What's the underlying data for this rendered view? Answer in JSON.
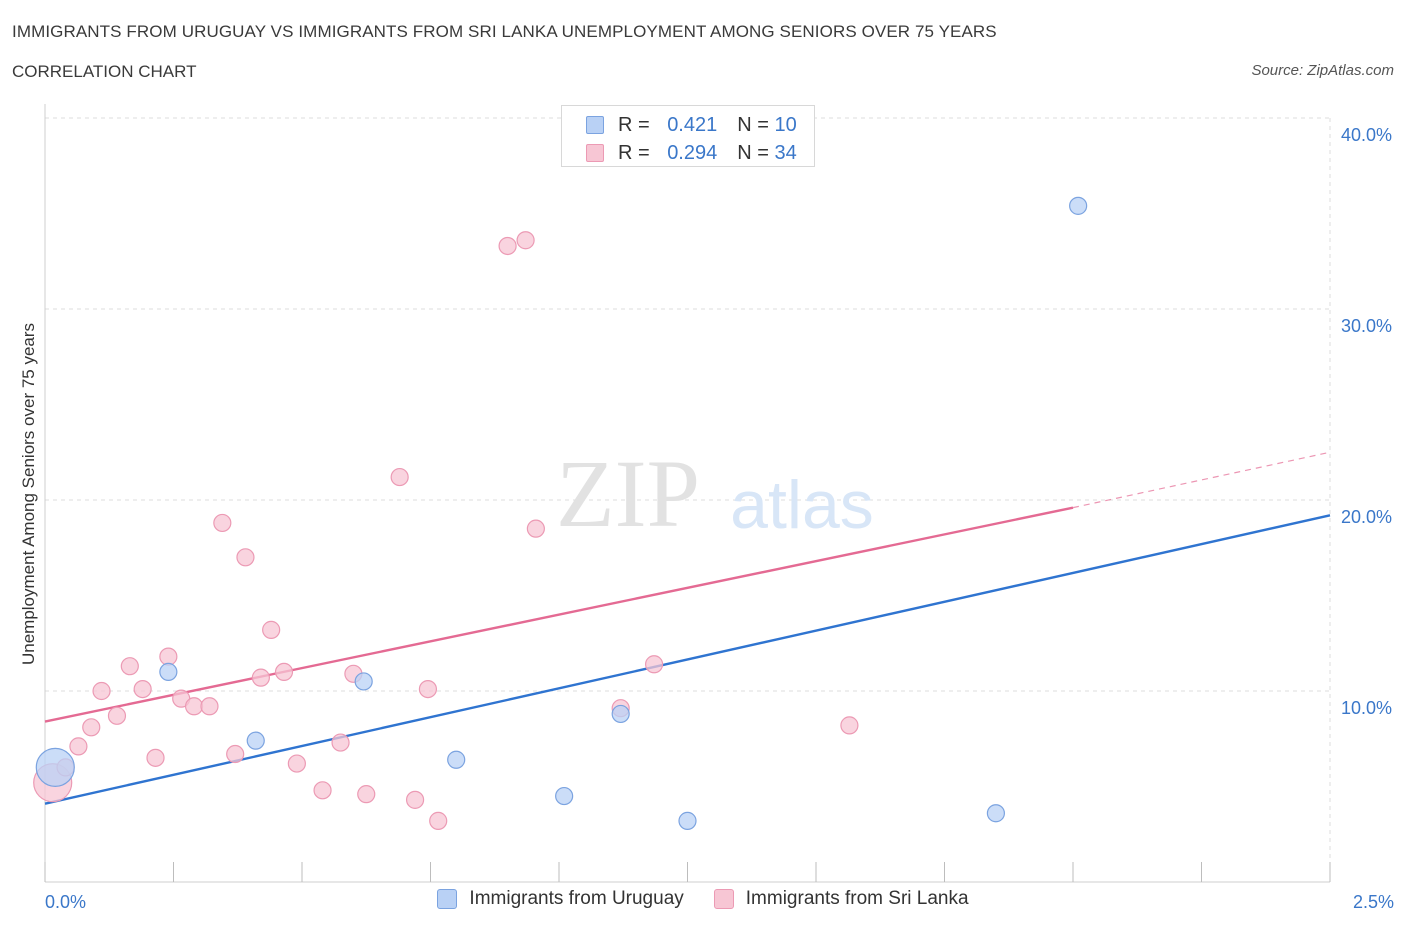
{
  "header": {
    "title": "IMMIGRANTS FROM URUGUAY VS IMMIGRANTS FROM SRI LANKA UNEMPLOYMENT AMONG SENIORS OVER 75 YEARS",
    "subtitle": "CORRELATION CHART",
    "source": "Source: ZipAtlas.com"
  },
  "watermark": {
    "zip": "ZIP",
    "atlas": "atlas"
  },
  "legend": {
    "r_label": "R =",
    "n_label": "N =",
    "rows": [
      {
        "r": "0.421",
        "n": "10"
      },
      {
        "r": "0.294",
        "n": "34"
      }
    ]
  },
  "colors": {
    "uruguay_fill": "#b9d1f5",
    "uruguay_stroke": "#7ba3e0",
    "uruguay_line": "#2f74d0",
    "srilanka_fill": "#f7c6d4",
    "srilanka_stroke": "#ec9ab4",
    "srilanka_line": "#e46a93",
    "tick_label": "#3a77c9",
    "grid": "#dddddd"
  },
  "chart_data": {
    "type": "scatter",
    "title": "IMMIGRANTS FROM URUGUAY VS IMMIGRANTS FROM SRI LANKA UNEMPLOYMENT AMONG SENIORS OVER 75 YEARS",
    "xlabel": "",
    "ylabel": "Unemployment Among Seniors over 75 years",
    "xlim": [
      0,
      2.5
    ],
    "ylim": [
      0,
      40
    ],
    "x_tick_labels": [
      "0.0%",
      "2.5%"
    ],
    "y_ticks": [
      10,
      20,
      30,
      40
    ],
    "y_tick_labels": [
      "10.0%",
      "20.0%",
      "30.0%",
      "40.0%"
    ],
    "series": [
      {
        "name": "Immigrants from Uruguay",
        "points": [
          {
            "x": 0.02,
            "y": 6.0,
            "big": true
          },
          {
            "x": 0.24,
            "y": 11.0
          },
          {
            "x": 0.41,
            "y": 7.4
          },
          {
            "x": 0.62,
            "y": 10.5
          },
          {
            "x": 0.8,
            "y": 6.4
          },
          {
            "x": 1.01,
            "y": 4.5
          },
          {
            "x": 1.12,
            "y": 8.8
          },
          {
            "x": 1.25,
            "y": 3.2
          },
          {
            "x": 1.85,
            "y": 3.6
          },
          {
            "x": 2.01,
            "y": 35.4
          }
        ],
        "trend": {
          "x1": 0.0,
          "y1": 4.1,
          "x2": 2.5,
          "y2": 19.2
        }
      },
      {
        "name": "Immigrants from Sri Lanka",
        "points": [
          {
            "x": 0.015,
            "y": 5.2,
            "big": true
          },
          {
            "x": 0.04,
            "y": 6.0
          },
          {
            "x": 0.065,
            "y": 7.1
          },
          {
            "x": 0.09,
            "y": 8.1
          },
          {
            "x": 0.11,
            "y": 10.0
          },
          {
            "x": 0.14,
            "y": 8.7
          },
          {
            "x": 0.165,
            "y": 11.3
          },
          {
            "x": 0.19,
            "y": 10.1
          },
          {
            "x": 0.215,
            "y": 6.5
          },
          {
            "x": 0.24,
            "y": 11.8
          },
          {
            "x": 0.265,
            "y": 9.6
          },
          {
            "x": 0.29,
            "y": 9.2
          },
          {
            "x": 0.32,
            "y": 9.2
          },
          {
            "x": 0.345,
            "y": 18.8
          },
          {
            "x": 0.37,
            "y": 6.7
          },
          {
            "x": 0.39,
            "y": 17.0
          },
          {
            "x": 0.42,
            "y": 10.7
          },
          {
            "x": 0.44,
            "y": 13.2
          },
          {
            "x": 0.465,
            "y": 11.0
          },
          {
            "x": 0.49,
            "y": 6.2
          },
          {
            "x": 0.54,
            "y": 4.8
          },
          {
            "x": 0.575,
            "y": 7.3
          },
          {
            "x": 0.6,
            "y": 10.9
          },
          {
            "x": 0.625,
            "y": 4.6
          },
          {
            "x": 0.69,
            "y": 21.2
          },
          {
            "x": 0.72,
            "y": 4.3
          },
          {
            "x": 0.745,
            "y": 10.1
          },
          {
            "x": 0.765,
            "y": 3.2
          },
          {
            "x": 0.9,
            "y": 33.3
          },
          {
            "x": 0.935,
            "y": 33.6
          },
          {
            "x": 0.955,
            "y": 18.5
          },
          {
            "x": 1.12,
            "y": 9.1
          },
          {
            "x": 1.185,
            "y": 11.4
          },
          {
            "x": 1.565,
            "y": 8.2
          }
        ],
        "trend": {
          "x1": 0.0,
          "y1": 8.4,
          "x2": 2.0,
          "y2": 19.6
        },
        "trend_extension": {
          "x1": 2.0,
          "y1": 19.6,
          "x2": 2.5,
          "y2": 22.5
        }
      }
    ]
  }
}
